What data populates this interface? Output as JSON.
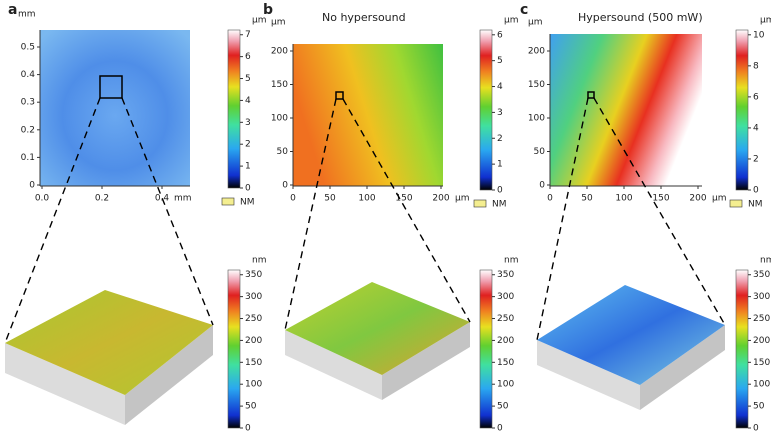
{
  "panels": [
    {
      "label": "a",
      "map": {
        "xticks": [
          "0.0",
          "0.2",
          "0.4"
        ],
        "x_unit": "mm",
        "yticks": [
          "0",
          "0.1",
          "0.2",
          "0.3",
          "0.4",
          "0.5"
        ],
        "y_unit": "mm",
        "colorbar": {
          "unit": "µm",
          "ticks": [
            "0",
            "1",
            "2",
            "3",
            "4",
            "5",
            "6",
            "7"
          ]
        },
        "legend": "NM"
      },
      "surface": {
        "colorbar": {
          "unit": "nm",
          "ticks": [
            "0",
            "50",
            "100",
            "150",
            "200",
            "250",
            "300",
            "350"
          ]
        }
      }
    },
    {
      "label": "b",
      "title": "No hypersound",
      "map": {
        "xticks": [
          "0",
          "50",
          "100",
          "150",
          "200"
        ],
        "x_unit": "µm",
        "yticks": [
          "0",
          "50",
          "100",
          "150",
          "200"
        ],
        "y_unit": "µm",
        "colorbar": {
          "unit": "µm",
          "ticks": [
            "0",
            "1",
            "2",
            "3",
            "4",
            "5",
            "6"
          ]
        },
        "legend": "NM"
      },
      "surface": {
        "colorbar": {
          "unit": "nm",
          "ticks": [
            "0",
            "50",
            "100",
            "150",
            "200",
            "250",
            "300",
            "350"
          ]
        }
      }
    },
    {
      "label": "c",
      "title": "Hypersound (500 mW)",
      "map": {
        "xticks": [
          "0",
          "50",
          "100",
          "150",
          "200"
        ],
        "x_unit": "µm",
        "yticks": [
          "0",
          "50",
          "100",
          "150",
          "200"
        ],
        "y_unit": "µm",
        "colorbar": {
          "unit": "µm",
          "ticks": [
            "0",
            "2",
            "4",
            "6",
            "8",
            "10"
          ]
        },
        "legend": "NM"
      },
      "surface": {
        "colorbar": {
          "unit": "nm",
          "ticks": [
            "0",
            "50",
            "100",
            "150",
            "200",
            "250",
            "300",
            "350"
          ]
        }
      }
    }
  ]
}
